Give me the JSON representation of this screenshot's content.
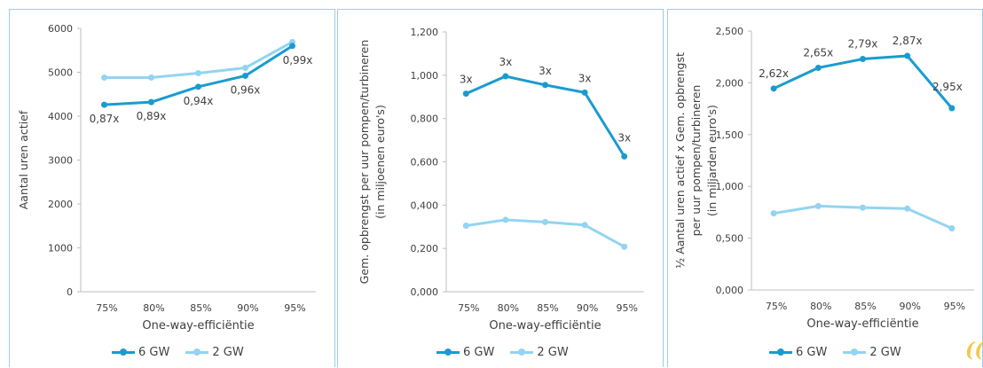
{
  "colors": {
    "series_6gw": "#1a9bcf",
    "series_2gw": "#92d4f2",
    "axis": "#bfbfbf",
    "text": "#404040",
    "panel_border": "#9ecde3",
    "logo": "#f2c94c"
  },
  "logo_icon": "logo-mark-icon",
  "chart_data": [
    {
      "type": "line",
      "categories": [
        "75%",
        "80%",
        "85%",
        "90%",
        "95%"
      ],
      "xlabel": "One-way-efficiëntie",
      "ylabel": "Aantal uren actief",
      "ylim": [
        0,
        6000
      ],
      "yticks": [
        0,
        1000,
        2000,
        3000,
        4000,
        5000,
        6000
      ],
      "ytick_labels": [
        "0",
        "1000",
        "2000",
        "3000",
        "4000",
        "5000",
        "6000"
      ],
      "grid": false,
      "legend_position": "bottom",
      "series": [
        {
          "name": "6 GW",
          "values": [
            4260,
            4320,
            4670,
            4920,
            5600
          ],
          "labels": [
            "0,87x",
            "0,89x",
            "0,94x",
            "0,96x",
            "0,99x"
          ]
        },
        {
          "name": "2 GW",
          "values": [
            4880,
            4880,
            4980,
            5100,
            5690
          ]
        }
      ]
    },
    {
      "type": "line",
      "categories": [
        "75%",
        "80%",
        "85%",
        "90%",
        "95%"
      ],
      "xlabel": "One-way-efficiëntie",
      "ylabel": "Gem. opbrengst per uur pompen/turbineren",
      "ylabel2": "(in miljoenen euro's)",
      "ylim": [
        0,
        1.2
      ],
      "yticks": [
        0,
        0.2,
        0.4,
        0.6,
        0.8,
        1.0,
        1.2
      ],
      "ytick_labels": [
        "0,000",
        "0,200",
        "0,400",
        "0,600",
        "0,800",
        "1,000",
        "1,200"
      ],
      "grid": false,
      "legend_position": "bottom",
      "series": [
        {
          "name": "6 GW",
          "values": [
            0.915,
            0.995,
            0.955,
            0.92,
            0.625
          ],
          "labels": [
            "3x",
            "3x",
            "3x",
            "3x",
            "3x"
          ]
        },
        {
          "name": "2 GW",
          "values": [
            0.305,
            0.332,
            0.322,
            0.308,
            0.208
          ]
        }
      ]
    },
    {
      "type": "line",
      "categories": [
        "75%",
        "80%",
        "85%",
        "90%",
        "95%"
      ],
      "xlabel": "One-way-efficiëntie",
      "ylabel": "½ Aantal uren actief x Gem. opbrengst",
      "ylabel2": "per uur pompen/turbineren",
      "ylabel3": "(in miljarden euro's)",
      "ylim": [
        0,
        2.5
      ],
      "yticks": [
        0,
        0.5,
        1.0,
        1.5,
        2.0,
        2.5
      ],
      "ytick_labels": [
        "0,000",
        "0,500",
        "1,000",
        "1,500",
        "2,000",
        "2,500"
      ],
      "grid": false,
      "legend_position": "bottom",
      "series": [
        {
          "name": "6 GW",
          "values": [
            1.945,
            2.145,
            2.23,
            2.26,
            1.755
          ],
          "labels": [
            "2,62x",
            "2,65x",
            "2,79x",
            "2,87x",
            "2,95x"
          ]
        },
        {
          "name": "2 GW",
          "values": [
            0.74,
            0.81,
            0.795,
            0.785,
            0.595
          ]
        }
      ]
    }
  ]
}
